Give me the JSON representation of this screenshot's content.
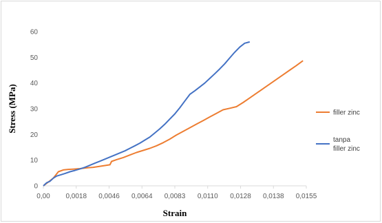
{
  "chart_data": {
    "type": "line",
    "title": "",
    "xlabel": "Strain",
    "ylabel": "Stress (MPa)",
    "xlim": [
      0,
      0.0158
    ],
    "ylim": [
      0,
      60
    ],
    "grid": false,
    "legend_position": "right",
    "x_tick_labels": [
      "0,00",
      "0,0018",
      "0,0046",
      "0,0064",
      "0,0083",
      "0,0110",
      "0,0128",
      "0,0138",
      "0,0155"
    ],
    "y_ticks": [
      0,
      10,
      20,
      30,
      40,
      50,
      60
    ],
    "series": [
      {
        "name": "filler zinc",
        "color": "#ED7D31",
        "x": [
          0,
          0.0003,
          0.0006,
          0.0009,
          0.0012,
          0.0015,
          0.0018,
          0.0022,
          0.0026,
          0.003,
          0.0034,
          0.0038,
          0.004,
          0.0041,
          0.0044,
          0.0048,
          0.0052,
          0.0056,
          0.006,
          0.0064,
          0.0068,
          0.0072,
          0.0076,
          0.008,
          0.0084,
          0.0088,
          0.0092,
          0.0096,
          0.01,
          0.0104,
          0.0108,
          0.0112,
          0.0116,
          0.012,
          0.0124,
          0.0128,
          0.0132,
          0.0136,
          0.014,
          0.0144,
          0.0148,
          0.0152,
          0.0156
        ],
        "y": [
          0,
          1.5,
          3.0,
          5.5,
          6.2,
          6.4,
          6.5,
          6.7,
          7.0,
          7.2,
          7.6,
          8.0,
          8.2,
          9.5,
          10.2,
          11.0,
          12.0,
          13.0,
          13.8,
          14.6,
          15.6,
          16.8,
          18.2,
          19.8,
          21.2,
          22.6,
          24.0,
          25.4,
          26.8,
          28.2,
          29.6,
          30.2,
          30.8,
          32.4,
          34.2,
          36.0,
          37.8,
          39.6,
          41.4,
          43.2,
          45.0,
          46.8,
          48.7
        ]
      },
      {
        "name": "tanpa filler zinc",
        "color": "#4472C4",
        "x": [
          0,
          0.0002,
          0.0004,
          0.0006,
          0.0008,
          0.001,
          0.0013,
          0.0016,
          0.0019,
          0.0022,
          0.0025,
          0.0028,
          0.0031,
          0.0034,
          0.0037,
          0.004,
          0.0043,
          0.0046,
          0.0049,
          0.0052,
          0.0055,
          0.0058,
          0.0061,
          0.0064,
          0.0067,
          0.007,
          0.0073,
          0.0076,
          0.0079,
          0.0082,
          0.0085,
          0.0088,
          0.0091,
          0.0094,
          0.0097,
          0.01,
          0.0103,
          0.0106,
          0.0109,
          0.0112,
          0.0115,
          0.0118,
          0.0121,
          0.0124
        ],
        "y": [
          0,
          1.2,
          1.8,
          3.0,
          3.8,
          4.2,
          4.8,
          5.5,
          6.0,
          6.6,
          7.2,
          8.0,
          8.8,
          9.6,
          10.4,
          11.2,
          12.0,
          12.8,
          13.6,
          14.6,
          15.6,
          16.6,
          17.8,
          19.0,
          20.6,
          22.2,
          24.0,
          26.0,
          28.0,
          30.4,
          33.0,
          35.6,
          37.0,
          38.5,
          40.0,
          41.8,
          43.6,
          45.5,
          47.5,
          49.8,
          52.0,
          54.0,
          55.5,
          56.0
        ]
      }
    ]
  }
}
